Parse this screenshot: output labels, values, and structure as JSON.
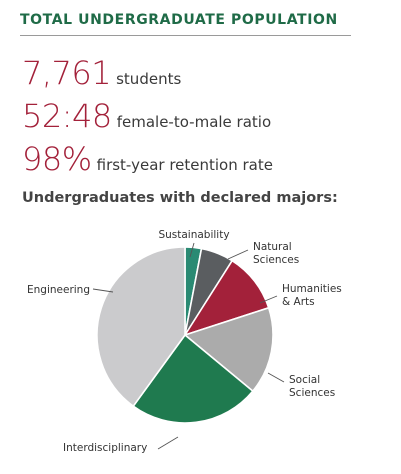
{
  "header": {
    "title": "TOTAL UNDERGRADUATE POPULATION"
  },
  "stats": [
    {
      "value": "7,761",
      "label": "students"
    },
    {
      "value": "52:48",
      "label": "female-to-male ratio"
    },
    {
      "value": "98%",
      "label": "first-year retention rate"
    }
  ],
  "chart_section": {
    "subtitle": "Undergraduates with declared majors:"
  },
  "colors": {
    "accent_red": "#a3213a",
    "accent_green": "#1f6b47"
  },
  "chart_data": {
    "type": "pie",
    "title": "Undergraduates with declared majors:",
    "slices": [
      {
        "label": "Sustainability",
        "lines": [
          "Sustainability"
        ],
        "value": 3,
        "color": "#2a8a73"
      },
      {
        "label": "Natural Sciences",
        "lines": [
          "Natural",
          "Sciences"
        ],
        "value": 6,
        "color": "#5a5d60"
      },
      {
        "label": "Humanities & Arts",
        "lines": [
          "Humanities",
          "& Arts"
        ],
        "value": 11,
        "color": "#a3213a"
      },
      {
        "label": "Social Sciences",
        "lines": [
          "Social",
          "Sciences"
        ],
        "value": 16,
        "color": "#ababab"
      },
      {
        "label": "Interdisciplinary",
        "lines": [
          "Interdisciplinary"
        ],
        "value": 24,
        "color": "#1f7a4f"
      },
      {
        "label": "Engineering",
        "lines": [
          "Engineering"
        ],
        "value": 40,
        "color": "#cbcbcd"
      }
    ]
  }
}
